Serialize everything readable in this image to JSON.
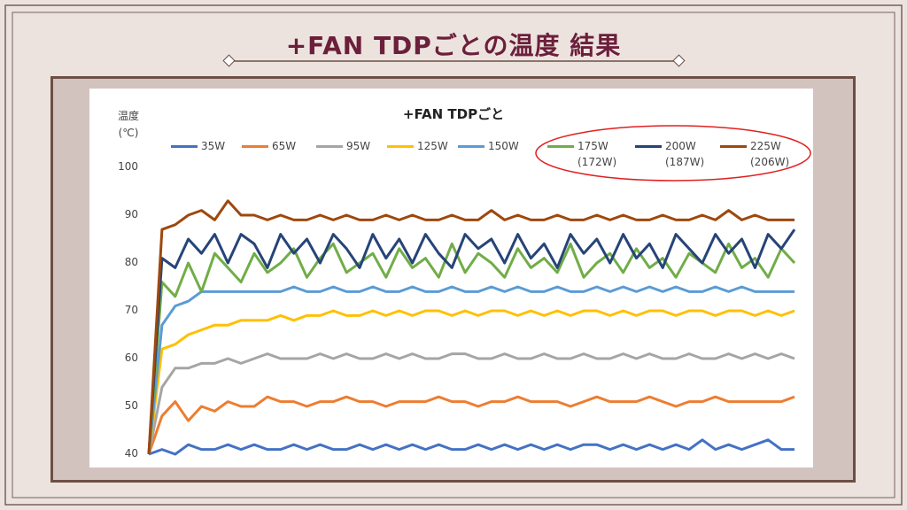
{
  "slide_title": "+FAN TDPごとの温度 結果",
  "chart_data": {
    "type": "line",
    "title": "+FAN TDPごと",
    "y_label": "温度\n(℃)",
    "ylim": [
      40,
      100
    ],
    "yticks": [
      40,
      50,
      60,
      70,
      80,
      90,
      100
    ],
    "grid": false,
    "series": [
      {
        "name": "35W",
        "color": "#4472c4",
        "values": [
          40,
          41,
          40,
          42,
          41,
          41,
          42,
          41,
          42,
          41,
          41,
          42,
          41,
          42,
          41,
          41,
          42,
          41,
          42,
          41,
          42,
          41,
          42,
          41,
          41,
          42,
          41,
          42,
          41,
          42,
          41,
          42,
          41,
          42,
          42,
          41,
          42,
          41,
          42,
          41,
          42,
          41,
          43,
          41,
          42,
          41,
          42,
          43,
          41,
          41
        ]
      },
      {
        "name": "65W",
        "color": "#ed7d31",
        "values": [
          40,
          48,
          51,
          47,
          50,
          49,
          51,
          50,
          50,
          52,
          51,
          51,
          50,
          51,
          51,
          52,
          51,
          51,
          50,
          51,
          51,
          51,
          52,
          51,
          51,
          50,
          51,
          51,
          52,
          51,
          51,
          51,
          50,
          51,
          52,
          51,
          51,
          51,
          52,
          51,
          50,
          51,
          51,
          52,
          51,
          51,
          51,
          51,
          51,
          52
        ]
      },
      {
        "name": "95W",
        "color": "#a5a5a5",
        "values": [
          40,
          54,
          58,
          58,
          59,
          59,
          60,
          59,
          60,
          61,
          60,
          60,
          60,
          61,
          60,
          61,
          60,
          60,
          61,
          60,
          61,
          60,
          60,
          61,
          61,
          60,
          60,
          61,
          60,
          60,
          61,
          60,
          60,
          61,
          60,
          60,
          61,
          60,
          61,
          60,
          60,
          61,
          60,
          60,
          61,
          60,
          61,
          60,
          61,
          60
        ]
      },
      {
        "name": "125W",
        "color": "#ffc000",
        "values": [
          40,
          62,
          63,
          65,
          66,
          67,
          67,
          68,
          68,
          68,
          69,
          68,
          69,
          69,
          70,
          69,
          69,
          70,
          69,
          70,
          69,
          70,
          70,
          69,
          70,
          69,
          70,
          70,
          69,
          70,
          69,
          70,
          69,
          70,
          70,
          69,
          70,
          69,
          70,
          70,
          69,
          70,
          70,
          69,
          70,
          70,
          69,
          70,
          69,
          70
        ]
      },
      {
        "name": "150W",
        "color": "#5b9bd5",
        "values": [
          40,
          67,
          71,
          72,
          74,
          74,
          74,
          74,
          74,
          74,
          74,
          75,
          74,
          74,
          75,
          74,
          74,
          75,
          74,
          74,
          75,
          74,
          74,
          75,
          74,
          74,
          75,
          74,
          75,
          74,
          74,
          75,
          74,
          74,
          75,
          74,
          75,
          74,
          75,
          74,
          75,
          74,
          74,
          75,
          74,
          75,
          74,
          74,
          74,
          74
        ]
      },
      {
        "name": "175W\n(172W)",
        "color": "#70ad47",
        "values": [
          40,
          76,
          73,
          80,
          74,
          82,
          79,
          76,
          82,
          78,
          80,
          83,
          77,
          81,
          84,
          78,
          80,
          82,
          77,
          83,
          79,
          81,
          77,
          84,
          78,
          82,
          80,
          77,
          83,
          79,
          81,
          78,
          84,
          77,
          80,
          82,
          78,
          83,
          79,
          81,
          77,
          82,
          80,
          78,
          84,
          79,
          81,
          77,
          83,
          80
        ]
      },
      {
        "name": "200W\n(187W)",
        "color": "#264478",
        "values": [
          40,
          81,
          79,
          85,
          82,
          86,
          80,
          86,
          84,
          79,
          86,
          82,
          85,
          80,
          86,
          83,
          79,
          86,
          81,
          85,
          80,
          86,
          82,
          79,
          86,
          83,
          85,
          80,
          86,
          81,
          84,
          79,
          86,
          82,
          85,
          80,
          86,
          81,
          84,
          79,
          86,
          83,
          80,
          86,
          82,
          85,
          79,
          86,
          83,
          87
        ]
      },
      {
        "name": "225W\n(206W)",
        "color": "#9e480e",
        "values": [
          40,
          87,
          88,
          90,
          91,
          89,
          93,
          90,
          90,
          89,
          90,
          89,
          89,
          90,
          89,
          90,
          89,
          89,
          90,
          89,
          90,
          89,
          89,
          90,
          89,
          89,
          91,
          89,
          90,
          89,
          89,
          90,
          89,
          89,
          90,
          89,
          90,
          89,
          89,
          90,
          89,
          89,
          90,
          89,
          91,
          89,
          90,
          89,
          89,
          89
        ]
      }
    ]
  }
}
